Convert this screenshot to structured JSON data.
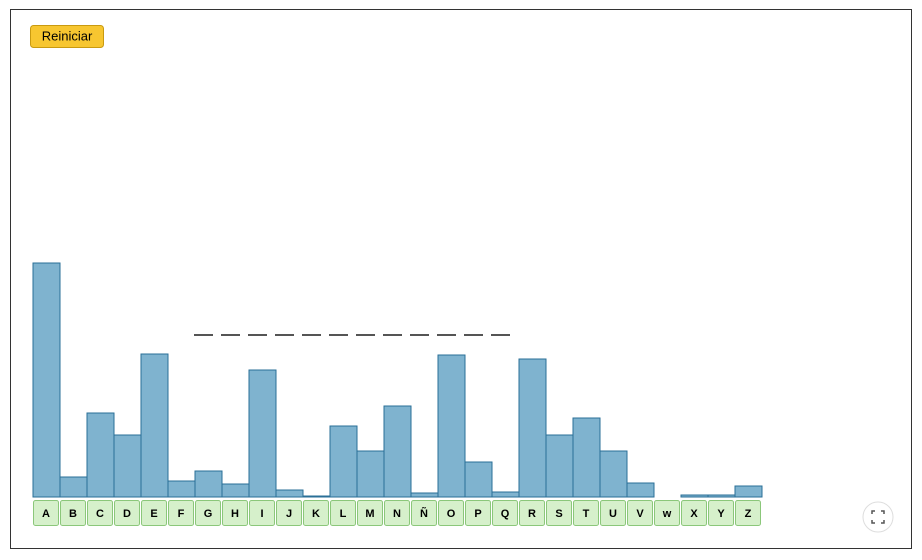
{
  "reset_button": "Reiniciar",
  "chart_data": {
    "type": "bar",
    "categories": [
      "A",
      "B",
      "C",
      "D",
      "E",
      "F",
      "G",
      "H",
      "I",
      "J",
      "K",
      "L",
      "M",
      "N",
      "Ñ",
      "O",
      "P",
      "Q",
      "R",
      "S",
      "T",
      "U",
      "V",
      "w",
      "X",
      "Y",
      "Z"
    ],
    "values": [
      23.4,
      2.0,
      8.4,
      6.2,
      14.3,
      1.6,
      2.6,
      1.3,
      12.7,
      0.7,
      0.1,
      7.1,
      4.6,
      9.1,
      0.4,
      14.2,
      3.5,
      0.5,
      13.8,
      6.2,
      7.9,
      4.6,
      1.4,
      0,
      0.2,
      0.2,
      1.1
    ],
    "color": "#7fb3cf",
    "ylim": [
      0,
      49
    ]
  }
}
